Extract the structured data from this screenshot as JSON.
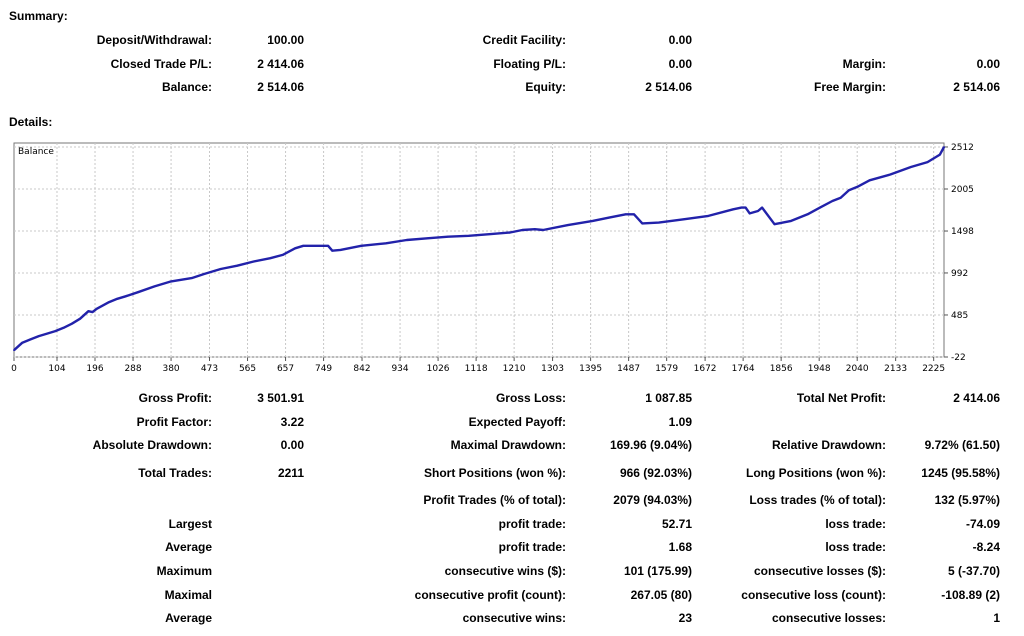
{
  "summary": {
    "title": "Summary:",
    "rows": [
      [
        [
          "Deposit/Withdrawal:",
          "100.00"
        ],
        [
          "Credit Facility:",
          "0.00"
        ],
        [
          "",
          ""
        ]
      ],
      [
        [
          "Closed Trade P/L:",
          "2 414.06"
        ],
        [
          "Floating P/L:",
          "0.00"
        ],
        [
          "Margin:",
          "0.00"
        ]
      ],
      [
        [
          "Balance:",
          "2 514.06"
        ],
        [
          "Equity:",
          "2 514.06"
        ],
        [
          "Free Margin:",
          "2 514.06"
        ]
      ]
    ]
  },
  "details": {
    "title": "Details:",
    "rows": [
      [
        [
          "Gross Profit:",
          "3 501.91"
        ],
        [
          "Gross Loss:",
          "1 087.85"
        ],
        [
          "Total Net Profit:",
          "2 414.06"
        ]
      ],
      [
        [
          "Profit Factor:",
          "3.22"
        ],
        [
          "Expected Payoff:",
          "1.09"
        ],
        [
          "",
          ""
        ]
      ],
      [
        [
          "Absolute Drawdown:",
          "0.00"
        ],
        [
          "Maximal Drawdown:",
          "169.96 (9.04%)"
        ],
        [
          "Relative Drawdown:",
          "9.72% (61.50)"
        ]
      ],
      [
        [
          "Total Trades:",
          "2211"
        ],
        [
          "Short Positions (won %):",
          "966 (92.03%)"
        ],
        [
          "Long Positions (won %):",
          "1245 (95.58%)"
        ]
      ],
      [
        [
          "",
          ""
        ],
        [
          "Profit Trades (% of total):",
          "2079 (94.03%)"
        ],
        [
          "Loss trades (% of total):",
          "132 (5.97%)"
        ]
      ],
      [
        [
          "Largest",
          ""
        ],
        [
          "profit trade:",
          "52.71"
        ],
        [
          "loss trade:",
          "-74.09"
        ]
      ],
      [
        [
          "Average",
          ""
        ],
        [
          "profit trade:",
          "1.68"
        ],
        [
          "loss trade:",
          "-8.24"
        ]
      ],
      [
        [
          "Maximum",
          ""
        ],
        [
          "consecutive wins ($):",
          "101 (175.99)"
        ],
        [
          "consecutive losses ($):",
          "5 (-37.70)"
        ]
      ],
      [
        [
          "Maximal",
          ""
        ],
        [
          "consecutive profit (count):",
          "267.05 (80)"
        ],
        [
          "consecutive loss (count):",
          "-108.89 (2)"
        ]
      ],
      [
        [
          "Average",
          ""
        ],
        [
          "consecutive wins:",
          "23"
        ],
        [
          "consecutive losses:",
          "1"
        ]
      ]
    ]
  },
  "chart_data": {
    "type": "line",
    "title": "Balance",
    "xlim": [
      0,
      2250
    ],
    "ylim": [
      -22,
      2560
    ],
    "x_ticks": [
      0,
      104,
      196,
      288,
      380,
      473,
      565,
      657,
      749,
      842,
      934,
      1026,
      1118,
      1210,
      1303,
      1395,
      1487,
      1579,
      1672,
      1764,
      1856,
      1948,
      2040,
      2133,
      2225
    ],
    "y_ticks": [
      -22,
      485,
      992,
      1498,
      2005,
      2512
    ],
    "grid": true,
    "series": [
      {
        "color": "#2222aa",
        "x": [
          0,
          20,
          40,
          60,
          80,
          100,
          120,
          140,
          160,
          180,
          190,
          200,
          230,
          250,
          270,
          300,
          340,
          380,
          430,
          460,
          500,
          540,
          580,
          620,
          650,
          680,
          700,
          760,
          770,
          790,
          840,
          900,
          950,
          1000,
          1050,
          1100,
          1150,
          1200,
          1230,
          1260,
          1280,
          1340,
          1400,
          1440,
          1480,
          1500,
          1520,
          1560,
          1620,
          1680,
          1740,
          1760,
          1770,
          1780,
          1800,
          1810,
          1840,
          1880,
          1920,
          1950,
          1980,
          2000,
          2020,
          2040,
          2070,
          2120,
          2170,
          2210,
          2240,
          2250
        ],
        "y": [
          60,
          150,
          190,
          230,
          260,
          290,
          330,
          380,
          440,
          530,
          520,
          560,
          640,
          680,
          710,
          760,
          830,
          890,
          930,
          980,
          1040,
          1080,
          1130,
          1170,
          1210,
          1290,
          1320,
          1320,
          1260,
          1270,
          1320,
          1350,
          1390,
          1410,
          1430,
          1440,
          1460,
          1480,
          1510,
          1520,
          1510,
          1570,
          1620,
          1660,
          1700,
          1700,
          1590,
          1600,
          1640,
          1680,
          1760,
          1780,
          1780,
          1710,
          1740,
          1780,
          1580,
          1620,
          1700,
          1780,
          1860,
          1900,
          1990,
          2030,
          2110,
          2180,
          2270,
          2330,
          2420,
          2512
        ]
      }
    ]
  }
}
